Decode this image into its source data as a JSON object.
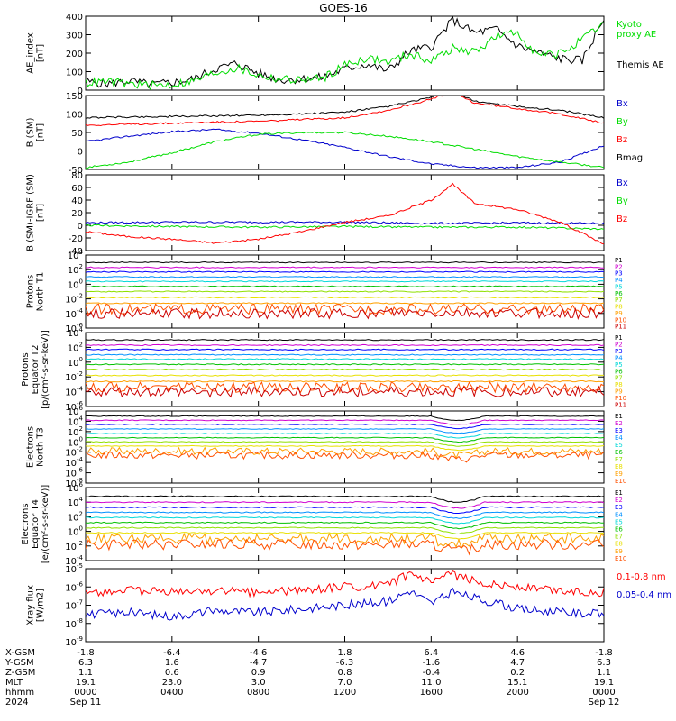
{
  "title": "GOES-16",
  "colors": {
    "black": "#000000",
    "red": "#ff0000",
    "green": "#00dd00",
    "blue": "#0000cc",
    "channels": [
      "#000000",
      "#d000d0",
      "#0000ff",
      "#0090ff",
      "#00d8d8",
      "#00c000",
      "#90e000",
      "#e8e000",
      "#ffa000",
      "#ff5000",
      "#cc0000"
    ]
  },
  "x_ticks": [
    "0000",
    "0400",
    "0800",
    "1200",
    "1600",
    "2000",
    "0000"
  ],
  "chart_data": [
    {
      "type": "line",
      "ylabel": "AE_index\n[nT]",
      "ylim": [
        0,
        400
      ],
      "yticks": [
        "0",
        "100",
        "200",
        "300",
        "400"
      ],
      "legend": [
        {
          "text": "Kyoto\nproxy AE",
          "color": "#00dd00"
        },
        {
          "text": "Themis AE",
          "color": "#000000"
        }
      ],
      "series": [
        {
          "color": "#000000",
          "x": [
            0,
            1,
            2,
            3,
            4,
            5,
            6,
            7,
            8,
            9,
            10,
            11,
            12,
            13,
            14,
            15,
            16,
            17,
            18,
            19,
            20,
            21,
            22,
            23,
            24
          ],
          "y": [
            45,
            35,
            50,
            30,
            40,
            60,
            115,
            145,
            90,
            55,
            60,
            70,
            115,
            140,
            105,
            210,
            235,
            380,
            310,
            330,
            240,
            200,
            170,
            160,
            390
          ]
        },
        {
          "color": "#00dd00",
          "x": [
            0,
            1,
            2,
            3,
            4,
            5,
            6,
            7,
            8,
            9,
            10,
            11,
            12,
            13,
            14,
            15,
            16,
            17,
            18,
            19,
            20,
            21,
            22,
            23,
            24
          ],
          "y": [
            40,
            45,
            35,
            25,
            30,
            50,
            95,
            120,
            80,
            60,
            55,
            65,
            135,
            175,
            150,
            195,
            160,
            225,
            205,
            290,
            310,
            185,
            200,
            270,
            360
          ]
        }
      ]
    },
    {
      "type": "line",
      "ylabel": "B (SM)\n[nT]",
      "ylim": [
        -50,
        150
      ],
      "yticks": [
        "-50",
        "0",
        "50",
        "100",
        "150"
      ],
      "legend": [
        {
          "text": "Bx",
          "color": "#0000cc"
        },
        {
          "text": "By",
          "color": "#00dd00"
        },
        {
          "text": "Bz",
          "color": "#ff0000"
        },
        {
          "text": "Bmag",
          "color": "#000000"
        }
      ],
      "series": [
        {
          "color": "#0000cc",
          "x": [
            0,
            2,
            4,
            6,
            8,
            10,
            12,
            14,
            16,
            18,
            20,
            22,
            24
          ],
          "y": [
            25,
            40,
            52,
            58,
            48,
            30,
            10,
            -15,
            -35,
            -45,
            -45,
            -30,
            15
          ]
        },
        {
          "color": "#00dd00",
          "x": [
            0,
            2,
            4,
            6,
            8,
            10,
            12,
            14,
            16,
            18,
            20,
            22,
            24
          ],
          "y": [
            -45,
            -30,
            -5,
            25,
            45,
            50,
            50,
            40,
            25,
            5,
            -15,
            -30,
            -45
          ]
        },
        {
          "color": "#ff0000",
          "x": [
            0,
            2,
            4,
            6,
            8,
            10,
            12,
            14,
            16,
            17,
            18,
            20,
            22,
            24
          ],
          "y": [
            70,
            72,
            75,
            78,
            80,
            85,
            90,
            110,
            140,
            160,
            130,
            115,
            100,
            75
          ]
        },
        {
          "color": "#000000",
          "x": [
            0,
            2,
            4,
            6,
            8,
            10,
            12,
            14,
            16,
            17,
            18,
            20,
            22,
            24
          ],
          "y": [
            90,
            92,
            93,
            95,
            97,
            100,
            105,
            120,
            145,
            160,
            135,
            120,
            110,
            90
          ]
        }
      ]
    },
    {
      "type": "line",
      "ylabel": "B (SM)-IGRF (SM)\n[nT]",
      "ylim": [
        -40,
        80
      ],
      "yticks": [
        "-40",
        "-20",
        "0",
        "20",
        "40",
        "60",
        "80"
      ],
      "legend": [
        {
          "text": "Bx",
          "color": "#0000cc"
        },
        {
          "text": "By",
          "color": "#00dd00"
        },
        {
          "text": "Bz",
          "color": "#ff0000"
        }
      ],
      "series": [
        {
          "color": "#0000cc",
          "x": [
            0,
            4,
            8,
            12,
            16,
            20,
            24
          ],
          "y": [
            4,
            5,
            5,
            5,
            3,
            4,
            3
          ]
        },
        {
          "color": "#00dd00",
          "x": [
            0,
            4,
            8,
            12,
            16,
            20,
            24
          ],
          "y": [
            0,
            -2,
            -3,
            -2,
            -3,
            -3,
            -6
          ]
        },
        {
          "color": "#ff0000",
          "x": [
            0,
            2,
            4,
            6,
            8,
            10,
            12,
            14,
            16,
            17,
            18,
            20,
            22,
            24
          ],
          "y": [
            -10,
            -18,
            -22,
            -28,
            -22,
            -10,
            5,
            15,
            40,
            65,
            35,
            25,
            5,
            -30
          ]
        }
      ]
    },
    {
      "type": "line",
      "scale": "log",
      "ylabel": "Protons\nNorth T1",
      "ylim": [
        -6,
        4
      ],
      "yticks": [
        "10^-6",
        "10^-4",
        "10^-2",
        "10^0",
        "10^2",
        "10^4"
      ],
      "channels": [
        "P1",
        "P2",
        "P3",
        "P4",
        "P5",
        "P6",
        "P7",
        "P8",
        "P9",
        "P10",
        "P11"
      ],
      "levels": [
        3.0,
        2.3,
        1.7,
        1.0,
        0.4,
        -0.3,
        -1.0,
        -1.8,
        -2.6,
        -3.4,
        -4.0
      ]
    },
    {
      "type": "line",
      "scale": "log",
      "ylabel": "Protons\nEquator T2\n[p/(cm²-s-sr-keV)]",
      "ylim": [
        -6,
        4
      ],
      "yticks": [
        "10^-6",
        "10^-4",
        "10^-2",
        "10^0",
        "10^2",
        "10^4"
      ],
      "channels": [
        "P1",
        "P2",
        "P3",
        "P4",
        "P5",
        "P6",
        "P7",
        "P8",
        "P9",
        "P10",
        "P11"
      ],
      "levels": [
        3.0,
        2.3,
        1.7,
        1.0,
        0.4,
        -0.3,
        -1.0,
        -1.8,
        -2.6,
        -3.4,
        -4.0
      ]
    },
    {
      "type": "line",
      "scale": "log",
      "ylabel": "Electrons\nNorth T3",
      "ylim": [
        -8,
        6
      ],
      "yticks": [
        "10^-8",
        "10^-6",
        "10^-4",
        "10^-2",
        "10^0",
        "10^2",
        "10^4",
        "10^6"
      ],
      "channels": [
        "E1",
        "E2",
        "E3",
        "E4",
        "E5",
        "E6",
        "E7",
        "E8",
        "E9",
        "E10"
      ],
      "levels": [
        5.0,
        4.2,
        3.4,
        2.5,
        1.6,
        0.8,
        0.0,
        -0.8,
        -1.8,
        -2.6
      ]
    },
    {
      "type": "line",
      "scale": "log",
      "ylabel": "Electrons\nEquator T4\n[e/(cm²-s-sr-keV)]",
      "ylim": [
        -4,
        6
      ],
      "yticks": [
        "10^-4",
        "10^-2",
        "10^0",
        "10^2",
        "10^4",
        "10^6"
      ],
      "channels": [
        "E1",
        "E2",
        "E3",
        "E4",
        "E5",
        "E6",
        "E7",
        "E8",
        "E9",
        "E10"
      ],
      "levels": [
        4.8,
        4.0,
        3.3,
        2.6,
        1.9,
        1.2,
        0.5,
        -0.2,
        -1.0,
        -1.8
      ]
    },
    {
      "type": "line",
      "scale": "log",
      "ylabel": "Xray flux\n[W/m2]",
      "ylim": [
        -9,
        -5
      ],
      "yticks": [
        "10^-9",
        "10^-8",
        "10^-7",
        "10^-6",
        "10^-5"
      ],
      "legend": [
        {
          "text": "0.1-0.8 nm",
          "color": "#ff0000"
        },
        {
          "text": "0.05-0.4 nm",
          "color": "#0000cc"
        }
      ],
      "series": [
        {
          "color": "#ff0000",
          "x": [
            0,
            2,
            4,
            6,
            8,
            10,
            12,
            14,
            15,
            16,
            17,
            18,
            20,
            22,
            24
          ],
          "y": [
            -6.3,
            -6.2,
            -6.3,
            -6.2,
            -6.3,
            -6.2,
            -6.0,
            -5.9,
            -5.3,
            -5.8,
            -5.3,
            -5.7,
            -6.0,
            -6.2,
            -6.3
          ]
        },
        {
          "color": "#0000cc",
          "x": [
            0,
            2,
            4,
            6,
            8,
            10,
            12,
            14,
            15,
            16,
            17,
            18,
            20,
            22,
            24
          ],
          "y": [
            -7.5,
            -7.4,
            -7.6,
            -7.3,
            -7.4,
            -7.2,
            -7.0,
            -6.8,
            -6.2,
            -6.9,
            -6.3,
            -6.6,
            -7.2,
            -7.4,
            -7.5
          ]
        }
      ]
    }
  ],
  "orbit": {
    "rows": [
      {
        "label": "X-GSM",
        "values": [
          "-1.8",
          "-6.4",
          "-4.6",
          "1.8",
          "6.4",
          "4.6",
          "-1.8"
        ]
      },
      {
        "label": "Y-GSM",
        "values": [
          "6.3",
          "1.6",
          "-4.7",
          "-6.3",
          "-1.6",
          "4.7",
          "6.3"
        ]
      },
      {
        "label": "Z-GSM",
        "values": [
          "1.1",
          "0.6",
          "0.9",
          "0.8",
          "-0.4",
          "0.2",
          "1.1"
        ]
      },
      {
        "label": "MLT",
        "values": [
          "19.1",
          "23.0",
          "3.0",
          "7.0",
          "11.0",
          "15.1",
          "19.1"
        ]
      },
      {
        "label": "hhmm",
        "values": [
          "0000",
          "0400",
          "0800",
          "1200",
          "1600",
          "2000",
          "0000"
        ]
      }
    ],
    "year": "2024",
    "date_start": "Sep 11",
    "date_end": "Sep 12"
  }
}
